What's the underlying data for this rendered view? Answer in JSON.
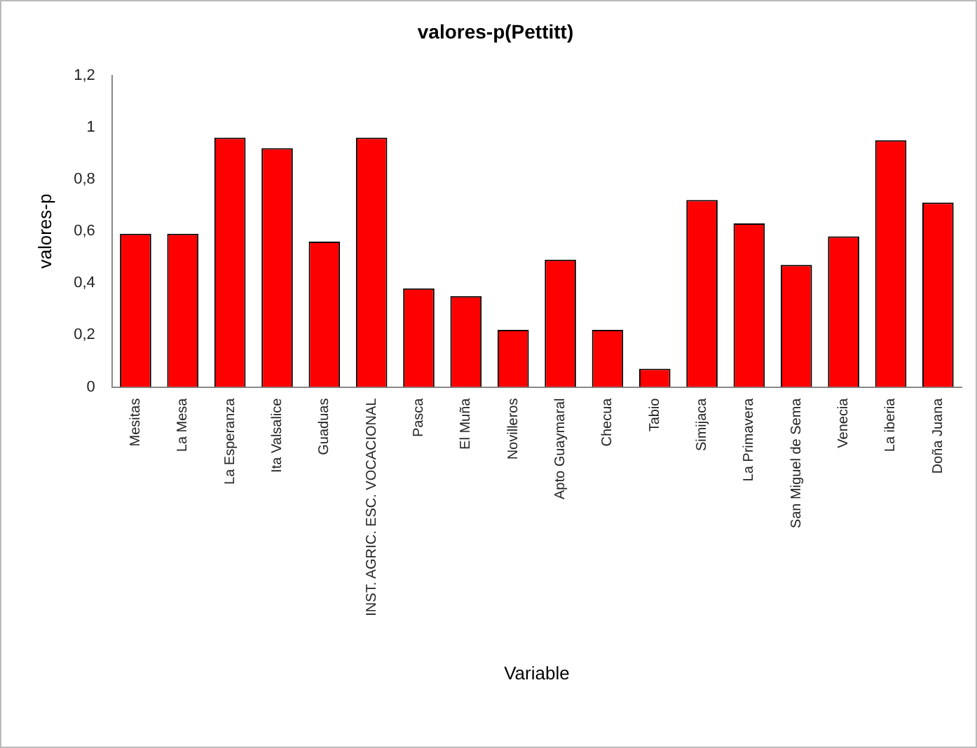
{
  "chart_data": {
    "type": "bar",
    "title": "valores-p(Pettitt)",
    "xlabel": "Variable",
    "ylabel": "valores-p",
    "categories": [
      "Mesitas",
      "La Mesa",
      "La Esperanza",
      "Ita Valsalice",
      "Guaduas",
      "INST. AGRIC. ESC. VOCACIONAL",
      "Pasca",
      "El Muña",
      "Novilleros",
      "Apto Guaymaral",
      "Checua",
      "Tabio",
      "Simijaca",
      "La Primavera",
      "San Miguel de Sema",
      "Venecia",
      "La iberia",
      "Doña Juana"
    ],
    "values": [
      0.59,
      0.59,
      0.96,
      0.92,
      0.56,
      0.96,
      0.38,
      0.35,
      0.22,
      0.49,
      0.22,
      0.07,
      0.72,
      0.63,
      0.47,
      0.58,
      0.95,
      0.71
    ],
    "color": "#ff0000",
    "ylim": [
      0,
      1.2
    ],
    "yticks": [
      {
        "value": 0,
        "label": "0"
      },
      {
        "value": 0.2,
        "label": "0,2"
      },
      {
        "value": 0.4,
        "label": "0,4"
      },
      {
        "value": 0.6,
        "label": "0,6"
      },
      {
        "value": 0.8,
        "label": "0,8"
      },
      {
        "value": 1,
        "label": "1"
      },
      {
        "value": 1.2,
        "label": "1,2"
      }
    ],
    "grid": false,
    "legend": false
  }
}
